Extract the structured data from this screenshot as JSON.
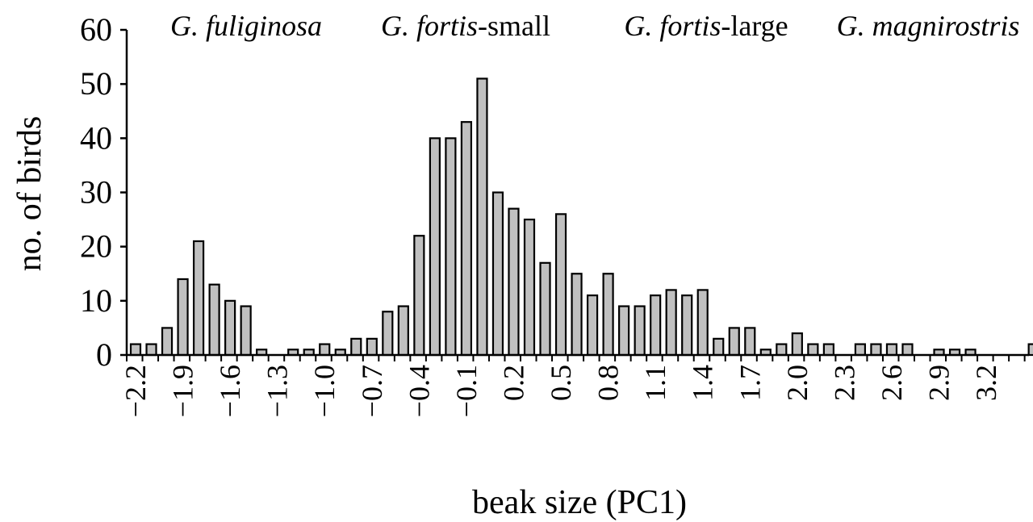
{
  "chart_data": {
    "type": "bar",
    "title": "",
    "xlabel": "beak size (PC1)",
    "ylabel": "no. of birds",
    "ylim": [
      0,
      60
    ],
    "yticks": [
      "0",
      "10",
      "20",
      "30",
      "40",
      "50",
      "60"
    ],
    "xlim": [
      -2.25,
      3.55
    ],
    "x_tick_labels": [
      "−2.2",
      "−1.9",
      "−1.6",
      "−1.3",
      "−1.0",
      "−0.7",
      "−0.4",
      "−0.1",
      "0.2",
      "0.5",
      "0.8",
      "1.1",
      "1.4",
      "1.7",
      "2.0",
      "2.3",
      "2.6",
      "2.9",
      "3.2"
    ],
    "bar_color": "#c0c0c0",
    "grid": false,
    "bars": [
      {
        "x": -2.2,
        "value": 2
      },
      {
        "x": -2.1,
        "value": 2
      },
      {
        "x": -2.0,
        "value": 5
      },
      {
        "x": -1.9,
        "value": 14
      },
      {
        "x": -1.8,
        "value": 21
      },
      {
        "x": -1.7,
        "value": 13
      },
      {
        "x": -1.6,
        "value": 10
      },
      {
        "x": -1.5,
        "value": 9
      },
      {
        "x": -1.4,
        "value": 1
      },
      {
        "x": -1.3,
        "value": 0
      },
      {
        "x": -1.2,
        "value": 1
      },
      {
        "x": -1.1,
        "value": 1
      },
      {
        "x": -1.0,
        "value": 2
      },
      {
        "x": -0.9,
        "value": 1
      },
      {
        "x": -0.8,
        "value": 3
      },
      {
        "x": -0.7,
        "value": 3
      },
      {
        "x": -0.6,
        "value": 8
      },
      {
        "x": -0.5,
        "value": 9
      },
      {
        "x": -0.4,
        "value": 22
      },
      {
        "x": -0.3,
        "value": 40
      },
      {
        "x": -0.2,
        "value": 40
      },
      {
        "x": -0.1,
        "value": 43
      },
      {
        "x": 0.0,
        "value": 51
      },
      {
        "x": 0.1,
        "value": 30
      },
      {
        "x": 0.2,
        "value": 27
      },
      {
        "x": 0.3,
        "value": 25
      },
      {
        "x": 0.4,
        "value": 17
      },
      {
        "x": 0.5,
        "value": 26
      },
      {
        "x": 0.6,
        "value": 15
      },
      {
        "x": 0.7,
        "value": 11
      },
      {
        "x": 0.8,
        "value": 15
      },
      {
        "x": 0.9,
        "value": 9
      },
      {
        "x": 1.0,
        "value": 9
      },
      {
        "x": 1.1,
        "value": 11
      },
      {
        "x": 1.2,
        "value": 12
      },
      {
        "x": 1.3,
        "value": 11
      },
      {
        "x": 1.4,
        "value": 12
      },
      {
        "x": 1.5,
        "value": 3
      },
      {
        "x": 1.6,
        "value": 5
      },
      {
        "x": 1.7,
        "value": 5
      },
      {
        "x": 1.8,
        "value": 1
      },
      {
        "x": 1.9,
        "value": 2
      },
      {
        "x": 2.0,
        "value": 4
      },
      {
        "x": 2.1,
        "value": 2
      },
      {
        "x": 2.2,
        "value": 2
      },
      {
        "x": 2.3,
        "value": 0
      },
      {
        "x": 2.4,
        "value": 2
      },
      {
        "x": 2.5,
        "value": 2
      },
      {
        "x": 2.6,
        "value": 2
      },
      {
        "x": 2.7,
        "value": 2
      },
      {
        "x": 2.8,
        "value": 0
      },
      {
        "x": 2.9,
        "value": 1
      },
      {
        "x": 3.0,
        "value": 1
      },
      {
        "x": 3.1,
        "value": 1
      },
      {
        "x": 3.2,
        "value": 0
      },
      {
        "x": 3.3,
        "value": 0
      },
      {
        "x": 3.4,
        "value": 0
      },
      {
        "x": 3.5,
        "value": 2
      }
    ],
    "annotations": [
      {
        "italic": "G. fuliginosa",
        "suffix": ""
      },
      {
        "italic": "G. fortis",
        "suffix": "-small"
      },
      {
        "italic": "G. fortis",
        "suffix": "-large"
      },
      {
        "italic": "G. magnirostris",
        "suffix": ""
      }
    ]
  }
}
